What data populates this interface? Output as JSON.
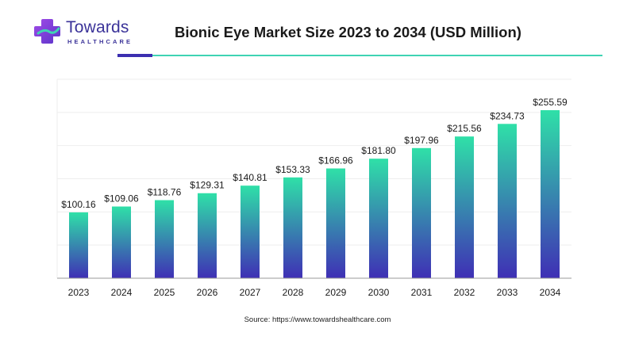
{
  "brand": {
    "name": "Towards",
    "tagline": "HEALTHCARE",
    "icon": "medical-cross-icon",
    "colors": {
      "primary": "#3b3399",
      "accent": "#3fd3b3",
      "cross": "#8b3fd9"
    }
  },
  "title": "Bionic Eye Market Size 2023 to 2034 (USD Million)",
  "source": "Source: https://www.towardshealthcare.com",
  "chart_data": {
    "type": "bar",
    "title": "Bionic Eye Market Size 2023 to 2034 (USD Million)",
    "xlabel": "",
    "ylabel": "",
    "categories": [
      "2023",
      "2024",
      "2025",
      "2026",
      "2027",
      "2028",
      "2029",
      "2030",
      "2031",
      "2032",
      "2033",
      "2034"
    ],
    "values": [
      100.16,
      109.06,
      118.76,
      129.31,
      140.81,
      153.33,
      166.96,
      181.8,
      197.96,
      215.56,
      234.73,
      255.59
    ],
    "labels": [
      "$100.16",
      "$109.06",
      "$118.76",
      "$129.31",
      "$140.81",
      "$153.33",
      "$166.96",
      "$181.80",
      "$197.96",
      "$215.56",
      "$234.73",
      "$255.59"
    ],
    "ylim": [
      0,
      255.59
    ],
    "grid": true,
    "legend": "none",
    "colors": {
      "bar_top": "#2fe0a8",
      "bar_bottom": "#3f2fb5",
      "grid": "#eeeeee",
      "axis": "#999999"
    }
  }
}
